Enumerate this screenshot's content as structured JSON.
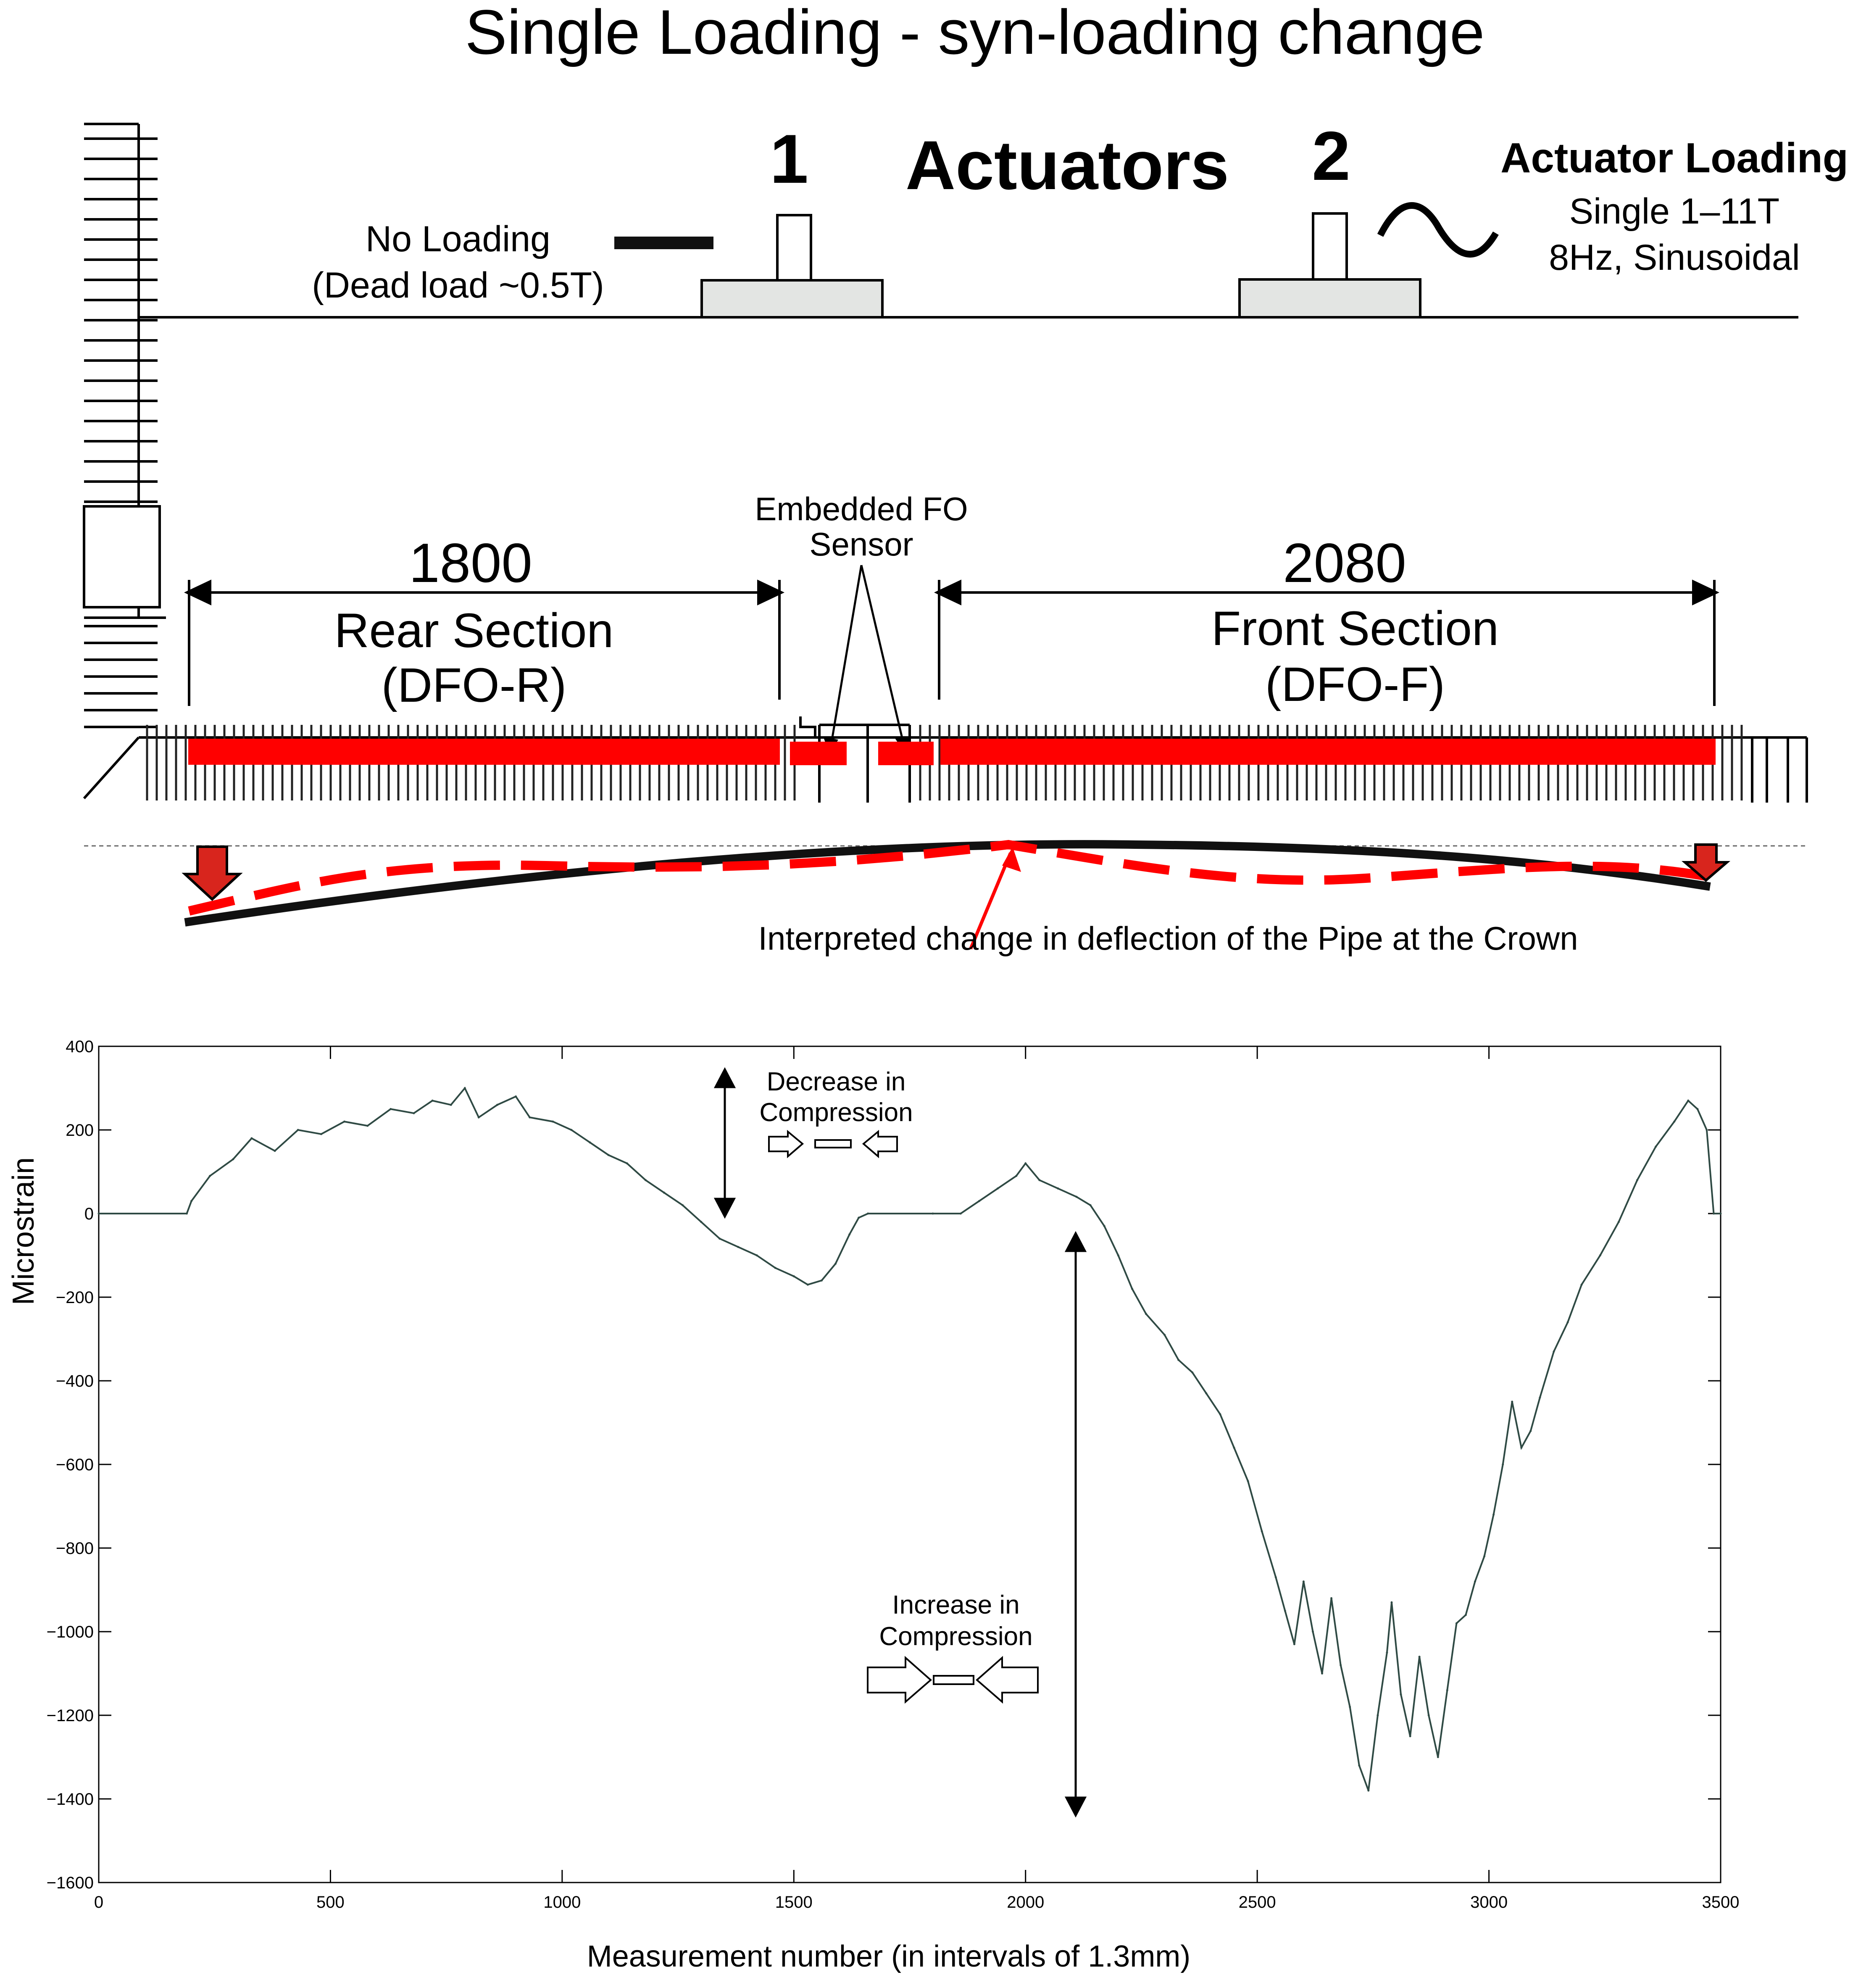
{
  "title": "Single Loading - syn-loading change",
  "diagram": {
    "actuators_label": "Actuators",
    "actuator_1_num": "1",
    "actuator_2_num": "2",
    "no_loading_line1": "No Loading",
    "no_loading_line2": "(Dead load ~0.5T)",
    "actuator_loading_title": "Actuator Loading",
    "actuator_loading_line1": "Single 1–11T",
    "actuator_loading_line2": "8Hz, Sinusoidal",
    "sensor_line1": "Embedded FO",
    "sensor_line2": "Sensor",
    "rear_length": "1800",
    "rear_name": "Rear Section",
    "rear_code": "(DFO-R)",
    "front_length": "2080",
    "front_name": "Front Section",
    "front_code": "(DFO-F)",
    "interpreted_label": "Interpreted change in deflection of the Pipe at the Crown",
    "colors": {
      "sensor_red": "#ff0000",
      "actuator_fill": "#e3e5e3",
      "pipe": "#111111"
    }
  },
  "annotations": {
    "decrease_line1": "Decrease in",
    "decrease_line2": "Compression",
    "increase_line1": "Increase in",
    "increase_line2": "Compression"
  },
  "chart_data": {
    "type": "line",
    "title": "",
    "xlabel": "Measurement number (in intervals of 1.3mm)",
    "ylabel": "Microstrain",
    "xlim": [
      0,
      3500
    ],
    "ylim": [
      -1600,
      400
    ],
    "xticks": [
      0,
      500,
      1000,
      1500,
      2000,
      2500,
      3000,
      3500
    ],
    "yticks": [
      400,
      200,
      0,
      -200,
      -400,
      -600,
      -800,
      -1000,
      -1200,
      -1400,
      -1600
    ],
    "ytick_labels": [
      "400",
      "200",
      "0",
      "−200",
      "−400",
      "−600",
      "−800",
      "−1000",
      "−1200",
      "−1400",
      "−1600"
    ],
    "grid": false,
    "line_color": "#2f4a44",
    "series": [
      {
        "values_xy": [
          [
            0,
            0
          ],
          [
            190,
            0
          ],
          [
            200,
            30
          ],
          [
            240,
            90
          ],
          [
            290,
            130
          ],
          [
            330,
            180
          ],
          [
            380,
            150
          ],
          [
            430,
            200
          ],
          [
            480,
            190
          ],
          [
            530,
            220
          ],
          [
            580,
            210
          ],
          [
            630,
            250
          ],
          [
            680,
            240
          ],
          [
            720,
            270
          ],
          [
            760,
            260
          ],
          [
            790,
            300
          ],
          [
            820,
            230
          ],
          [
            860,
            260
          ],
          [
            900,
            280
          ],
          [
            930,
            230
          ],
          [
            980,
            220
          ],
          [
            1020,
            200
          ],
          [
            1060,
            170
          ],
          [
            1100,
            140
          ],
          [
            1140,
            120
          ],
          [
            1180,
            80
          ],
          [
            1220,
            50
          ],
          [
            1260,
            20
          ],
          [
            1300,
            -20
          ],
          [
            1340,
            -60
          ],
          [
            1380,
            -80
          ],
          [
            1420,
            -100
          ],
          [
            1460,
            -130
          ],
          [
            1500,
            -150
          ],
          [
            1530,
            -170
          ],
          [
            1560,
            -160
          ],
          [
            1590,
            -120
          ],
          [
            1620,
            -50
          ],
          [
            1640,
            -10
          ],
          [
            1660,
            0
          ],
          [
            1800,
            0
          ],
          [
            1860,
            0
          ],
          [
            1900,
            30
          ],
          [
            1940,
            60
          ],
          [
            1980,
            90
          ],
          [
            2000,
            120
          ],
          [
            2030,
            80
          ],
          [
            2070,
            60
          ],
          [
            2110,
            40
          ],
          [
            2140,
            20
          ],
          [
            2170,
            -30
          ],
          [
            2200,
            -100
          ],
          [
            2230,
            -180
          ],
          [
            2260,
            -240
          ],
          [
            2300,
            -290
          ],
          [
            2330,
            -350
          ],
          [
            2360,
            -380
          ],
          [
            2390,
            -430
          ],
          [
            2420,
            -480
          ],
          [
            2450,
            -560
          ],
          [
            2480,
            -640
          ],
          [
            2510,
            -760
          ],
          [
            2540,
            -870
          ],
          [
            2560,
            -950
          ],
          [
            2580,
            -1030
          ],
          [
            2600,
            -880
          ],
          [
            2620,
            -1000
          ],
          [
            2640,
            -1100
          ],
          [
            2660,
            -920
          ],
          [
            2680,
            -1080
          ],
          [
            2700,
            -1180
          ],
          [
            2720,
            -1320
          ],
          [
            2740,
            -1380
          ],
          [
            2760,
            -1200
          ],
          [
            2780,
            -1050
          ],
          [
            2790,
            -930
          ],
          [
            2810,
            -1150
          ],
          [
            2830,
            -1250
          ],
          [
            2850,
            -1060
          ],
          [
            2870,
            -1200
          ],
          [
            2890,
            -1300
          ],
          [
            2910,
            -1140
          ],
          [
            2930,
            -980
          ],
          [
            2950,
            -960
          ],
          [
            2970,
            -880
          ],
          [
            2990,
            -820
          ],
          [
            3010,
            -720
          ],
          [
            3030,
            -600
          ],
          [
            3050,
            -450
          ],
          [
            3070,
            -560
          ],
          [
            3090,
            -520
          ],
          [
            3110,
            -440
          ],
          [
            3140,
            -330
          ],
          [
            3170,
            -260
          ],
          [
            3200,
            -170
          ],
          [
            3240,
            -100
          ],
          [
            3280,
            -20
          ],
          [
            3320,
            80
          ],
          [
            3360,
            160
          ],
          [
            3400,
            220
          ],
          [
            3430,
            270
          ],
          [
            3450,
            250
          ],
          [
            3470,
            200
          ],
          [
            3485,
            0
          ],
          [
            3500,
            0
          ]
        ]
      }
    ]
  }
}
